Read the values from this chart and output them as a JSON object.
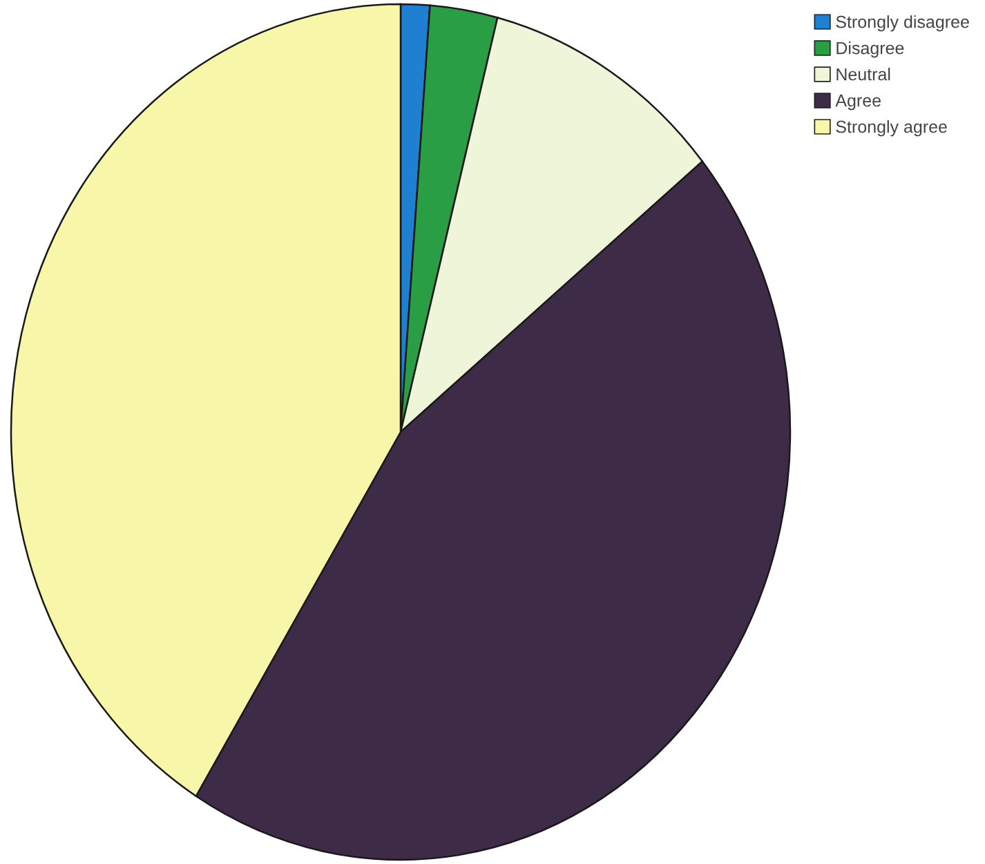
{
  "chart_data": {
    "type": "pie",
    "categories": [
      "Strongly disagree",
      "Disagree",
      "Neutral",
      "Agree",
      "Strongly agree"
    ],
    "values": [
      1.2,
      2.8,
      10.1,
      44.7,
      41.2
    ],
    "colors": [
      "#1f7fd0",
      "#2a9e45",
      "#eef5d8",
      "#3d2b47",
      "#f8f6a8"
    ],
    "legend": "top right"
  }
}
